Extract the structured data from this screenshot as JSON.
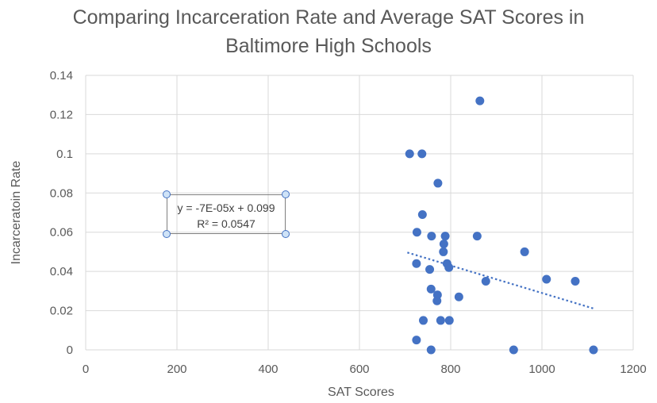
{
  "chart_data": {
    "type": "scatter",
    "title_lines": [
      "Comparing Incarceration Rate and Average SAT Scores in",
      "Baltimore High Schools"
    ],
    "xlabel": "SAT Scores",
    "ylabel": "Incarceratoin Rate",
    "xlim": [
      0,
      1200
    ],
    "ylim": [
      0,
      0.14
    ],
    "x_ticks": [
      0,
      200,
      400,
      600,
      800,
      1000,
      1200
    ],
    "y_ticks": [
      "0",
      "0.02",
      "0.04",
      "0.06",
      "0.08",
      "0.1",
      "0.12",
      "0.14"
    ],
    "grid": true,
    "marker_color": "#4472c4",
    "trendline_color": "#4472c4",
    "points": [
      {
        "x": 710,
        "y": 0.1
      },
      {
        "x": 737,
        "y": 0.1
      },
      {
        "x": 864,
        "y": 0.127
      },
      {
        "x": 772,
        "y": 0.085
      },
      {
        "x": 738,
        "y": 0.069
      },
      {
        "x": 726,
        "y": 0.06
      },
      {
        "x": 758,
        "y": 0.058
      },
      {
        "x": 788,
        "y": 0.058
      },
      {
        "x": 858,
        "y": 0.058
      },
      {
        "x": 785,
        "y": 0.054
      },
      {
        "x": 784,
        "y": 0.05
      },
      {
        "x": 962,
        "y": 0.05
      },
      {
        "x": 725,
        "y": 0.044
      },
      {
        "x": 792,
        "y": 0.044
      },
      {
        "x": 754,
        "y": 0.041
      },
      {
        "x": 796,
        "y": 0.042
      },
      {
        "x": 877,
        "y": 0.035
      },
      {
        "x": 1010,
        "y": 0.036
      },
      {
        "x": 1073,
        "y": 0.035
      },
      {
        "x": 757,
        "y": 0.031
      },
      {
        "x": 771,
        "y": 0.028
      },
      {
        "x": 770,
        "y": 0.025
      },
      {
        "x": 818,
        "y": 0.027
      },
      {
        "x": 740,
        "y": 0.015
      },
      {
        "x": 778,
        "y": 0.015
      },
      {
        "x": 797,
        "y": 0.015
      },
      {
        "x": 725,
        "y": 0.005
      },
      {
        "x": 757,
        "y": 0.0
      },
      {
        "x": 938,
        "y": 0.0
      },
      {
        "x": 1113,
        "y": 0.0
      }
    ],
    "trendline": {
      "type": "linear",
      "x_range": [
        705,
        1113
      ],
      "slope": -7e-05,
      "intercept": 0.099,
      "equation": "y = -7E-05x + 0.099",
      "r_squared": "R² = 0.0547"
    }
  }
}
